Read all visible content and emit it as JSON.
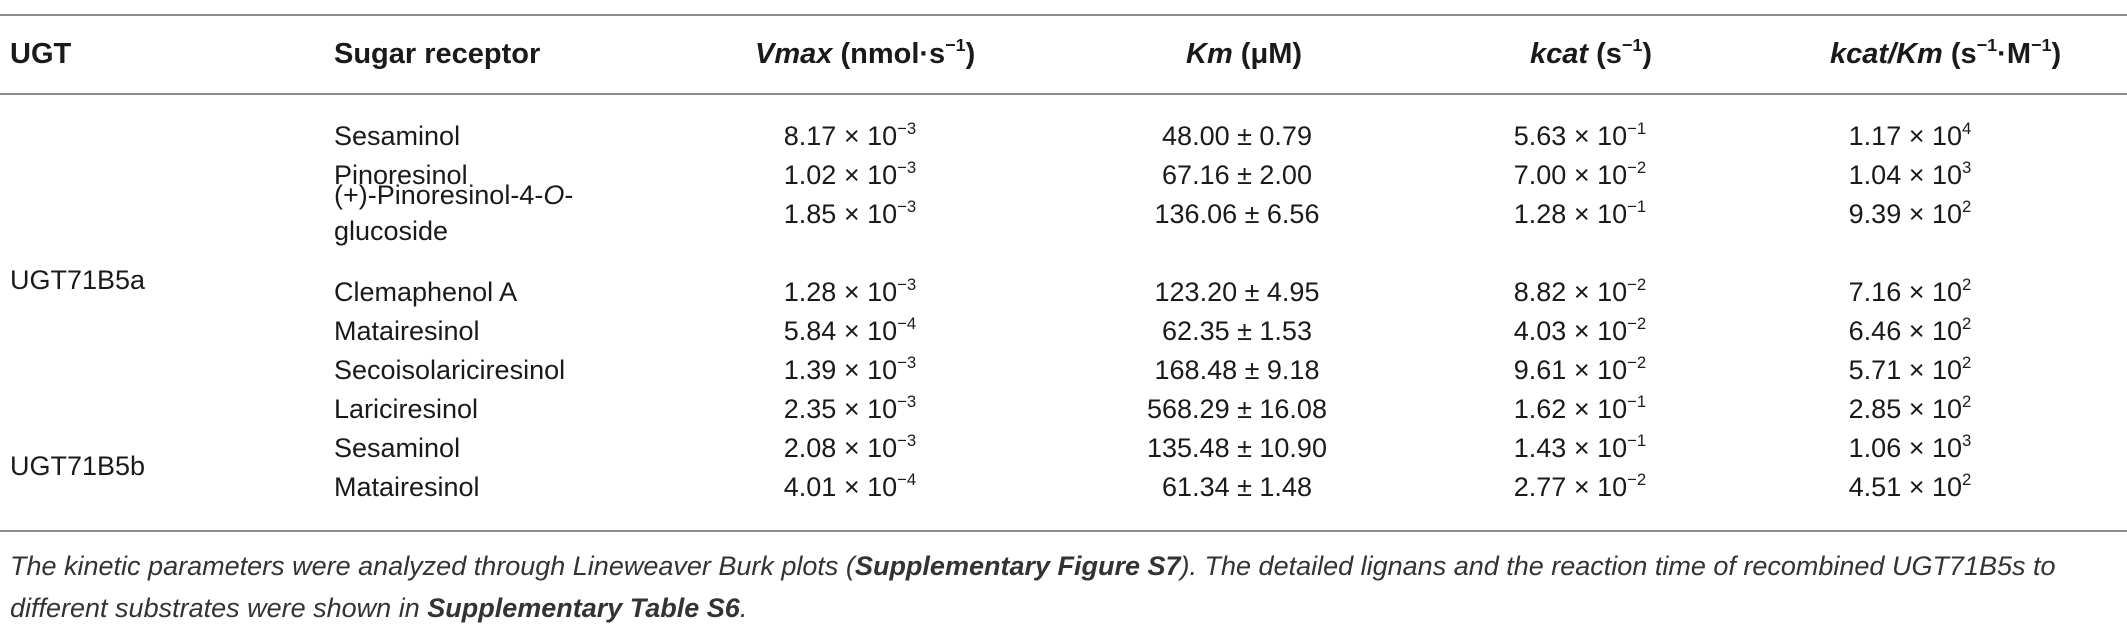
{
  "headers": {
    "ugt": "UGT",
    "sugar": "Sugar receptor",
    "vmax_sym": "Vmax",
    "vmax_unit_pre": " (nmol·s",
    "vmax_unit_exp": "−1",
    "vmax_unit_post": ")",
    "km_sym": "Km",
    "km_unit": " (μM)",
    "kcat_sym": "kcat",
    "kcat_unit_pre": " (s",
    "kcat_unit_exp": "−1",
    "kcat_unit_post": ")",
    "kcatkm_sym": "kcat/Km",
    "kcatkm_unit_pre": " (s",
    "kcatkm_unit_exp1": "−1",
    "kcatkm_unit_mid": "·M",
    "kcatkm_unit_exp2": "−1",
    "kcatkm_unit_post": ")"
  },
  "groups": [
    {
      "label": "UGT71B5a"
    },
    {
      "label": "UGT71B5b"
    }
  ],
  "rows": [
    {
      "sugar": "Sesaminol",
      "vmax_m": "8.17 × 10",
      "vmax_e": "−3",
      "km": "48.00 ± 0.79",
      "kcat_m": "5.63 × 10",
      "kcat_e": "−1",
      "ratio_m": "1.17 × 10",
      "ratio_e": "4"
    },
    {
      "sugar": "Pinoresinol",
      "vmax_m": "1.02 × 10",
      "vmax_e": "−3",
      "km": "67.16 ± 2.00",
      "kcat_m": "7.00 × 10",
      "kcat_e": "−2",
      "ratio_m": "1.04 × 10",
      "ratio_e": "3"
    },
    {
      "sugar_pre": "(+)-Pinoresinol-4-",
      "sugar_it": "O",
      "sugar_post": "-",
      "sugar_line2": "glucoside",
      "vmax_m": "1.85 × 10",
      "vmax_e": "−3",
      "km": "136.06 ± 6.56",
      "kcat_m": "1.28 × 10",
      "kcat_e": "−1",
      "ratio_m": "9.39 × 10",
      "ratio_e": "2"
    },
    {
      "sugar": "Clemaphenol A",
      "vmax_m": "1.28 × 10",
      "vmax_e": "−3",
      "km": "123.20 ± 4.95",
      "kcat_m": "8.82 × 10",
      "kcat_e": "−2",
      "ratio_m": "7.16 × 10",
      "ratio_e": "2"
    },
    {
      "sugar": "Matairesinol",
      "vmax_m": "5.84 × 10",
      "vmax_e": "−4",
      "km": "62.35 ± 1.53",
      "kcat_m": "4.03 × 10",
      "kcat_e": "−2",
      "ratio_m": "6.46 × 10",
      "ratio_e": "2"
    },
    {
      "sugar": "Secoisolariciresinol",
      "vmax_m": "1.39 × 10",
      "vmax_e": "−3",
      "km": "168.48 ± 9.18",
      "kcat_m": "9.61 × 10",
      "kcat_e": "−2",
      "ratio_m": "5.71 × 10",
      "ratio_e": "2"
    },
    {
      "sugar": "Lariciresinol",
      "vmax_m": "2.35 × 10",
      "vmax_e": "−3",
      "km": "568.29 ± 16.08",
      "kcat_m": "1.62 × 10",
      "kcat_e": "−1",
      "ratio_m": "2.85 × 10",
      "ratio_e": "2"
    },
    {
      "sugar": "Sesaminol",
      "vmax_m": "2.08 × 10",
      "vmax_e": "−3",
      "km": "135.48 ± 10.90",
      "kcat_m": "1.43 × 10",
      "kcat_e": "−1",
      "ratio_m": "1.06 × 10",
      "ratio_e": "3"
    },
    {
      "sugar": "Matairesinol",
      "vmax_m": "4.01 × 10",
      "vmax_e": "−4",
      "km": "61.34 ± 1.48",
      "kcat_m": "2.77 × 10",
      "kcat_e": "−2",
      "ratio_m": "4.51 × 10",
      "ratio_e": "2"
    }
  ],
  "footnote": {
    "t1": "The kinetic parameters were analyzed through Lineweaver Burk plots (",
    "b1": "Supplementary Figure S7",
    "t2": "). The detailed lignans and the reaction time of recombined UGT71B5s to different substrates were shown in ",
    "b2": "Supplementary Table S6",
    "t3": "."
  }
}
